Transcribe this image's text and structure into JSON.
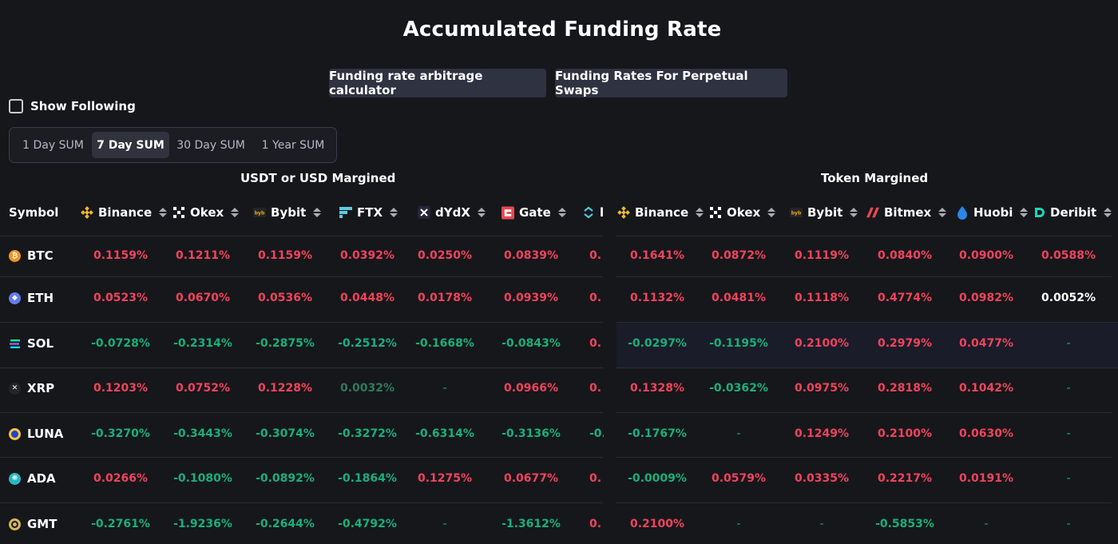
{
  "title": "Accumulated Funding Rate",
  "buttons": {
    "calculator": "Funding rate arbitrage calculator",
    "perpetual": "Funding Rates For Perpetual Swaps"
  },
  "show_following": "Show Following",
  "periods": [
    "1 Day SUM",
    "7 Day SUM",
    "30 Day SUM",
    "1 Year SUM"
  ],
  "active_period": "7 Day SUM",
  "groups": {
    "usdt": "USDT or USD Margined",
    "token": "Token Margined"
  },
  "headers": {
    "symbol": "Symbol",
    "usdt": [
      "Binance",
      "Okex",
      "Bybit",
      "FTX",
      "dYdX",
      "Gate",
      "l"
    ],
    "token": [
      "Binance",
      "Okex",
      "Bybit",
      "Bitmex",
      "Huobi",
      "Deribit"
    ]
  },
  "rows": [
    {
      "symbol": "BTC",
      "usdt": [
        "0.1159%",
        "0.1211%",
        "0.1159%",
        "0.0392%",
        "0.0250%",
        "0.0839%",
        "0."
      ],
      "token": [
        "0.1641%",
        "0.0872%",
        "0.1119%",
        "0.0840%",
        "0.0900%",
        "0.0588%"
      ]
    },
    {
      "symbol": "ETH",
      "usdt": [
        "0.0523%",
        "0.0670%",
        "0.0536%",
        "0.0448%",
        "0.0178%",
        "0.0939%",
        "0."
      ],
      "token": [
        "0.1132%",
        "0.0481%",
        "0.1118%",
        "0.4774%",
        "0.0982%",
        "0.0052%"
      ]
    },
    {
      "symbol": "SOL",
      "usdt": [
        "-0.0728%",
        "-0.2314%",
        "-0.2875%",
        "-0.2512%",
        "-0.1668%",
        "-0.0843%",
        "0."
      ],
      "token": [
        "-0.0297%",
        "-0.1195%",
        "0.2100%",
        "0.2979%",
        "0.0477%",
        "-"
      ]
    },
    {
      "symbol": "XRP",
      "usdt": [
        "0.1203%",
        "0.0752%",
        "0.1228%",
        "0.0032%",
        "-",
        "0.0966%",
        "0."
      ],
      "token": [
        "0.1328%",
        "-0.0362%",
        "0.0975%",
        "0.2818%",
        "0.1042%",
        "-"
      ]
    },
    {
      "symbol": "LUNA",
      "usdt": [
        "-0.3270%",
        "-0.3443%",
        "-0.3074%",
        "-0.3272%",
        "-0.6314%",
        "-0.3136%",
        "-0."
      ],
      "token": [
        "-0.1767%",
        "-",
        "0.1249%",
        "0.2100%",
        "0.0630%",
        "-"
      ]
    },
    {
      "symbol": "ADA",
      "usdt": [
        "0.0266%",
        "-0.1080%",
        "-0.0892%",
        "-0.1864%",
        "0.1275%",
        "0.0677%",
        "0."
      ],
      "token": [
        "-0.0009%",
        "0.0579%",
        "0.0335%",
        "0.2217%",
        "0.0191%",
        "-"
      ]
    },
    {
      "symbol": "GMT",
      "usdt": [
        "-0.2761%",
        "-1.9236%",
        "-0.2644%",
        "-0.4792%",
        "-",
        "-1.3612%",
        "0."
      ],
      "token": [
        "0.2100%",
        "-",
        "-",
        "-0.5853%",
        "-",
        "-"
      ]
    }
  ],
  "colors": {
    "positive": "#f0435c",
    "negative": "#17b07a",
    "button_bg": "#2f3240",
    "background": "#16171b"
  }
}
